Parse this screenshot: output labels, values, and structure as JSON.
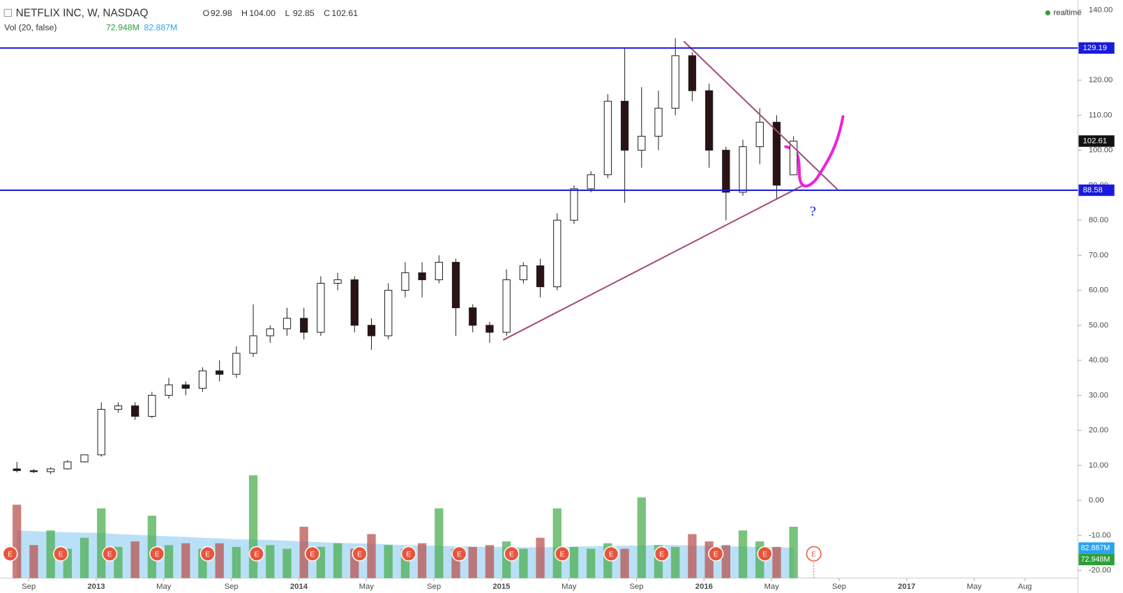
{
  "header": {
    "title": "NETFLIX INC, W, NASDAQ",
    "ohlc": [
      {
        "key": "O",
        "value": "92.98"
      },
      {
        "key": "H",
        "value": "104.00"
      },
      {
        "key": "L",
        "value": "92.85"
      },
      {
        "key": "C",
        "value": "102.61"
      }
    ],
    "indicator": "Vol (20, false)",
    "vol_value": "72.948M",
    "vol_ma_value": "82.887M",
    "status": "realtime"
  },
  "chart_data": {
    "type": "candlestick",
    "xlim": [
      6.3,
      70.1
    ],
    "ylim": [
      -22.2,
      142.9
    ],
    "vol_lim": [
      0,
      1575
    ],
    "xticks": [
      {
        "value": 8,
        "label": "Sep"
      },
      {
        "value": 12,
        "label": "2013"
      },
      {
        "value": 16,
        "label": "May"
      },
      {
        "value": 20,
        "label": "Sep"
      },
      {
        "value": 24,
        "label": "2014"
      },
      {
        "value": 28,
        "label": "May"
      },
      {
        "value": 32,
        "label": "Sep"
      },
      {
        "value": 36,
        "label": "2015"
      },
      {
        "value": 40,
        "label": "May"
      },
      {
        "value": 44,
        "label": "Sep"
      },
      {
        "value": 48,
        "label": "2016"
      },
      {
        "value": 52,
        "label": "May"
      },
      {
        "value": 56,
        "label": "Sep"
      },
      {
        "value": 60,
        "label": "2017"
      },
      {
        "value": 64,
        "label": "May"
      },
      {
        "value": 67,
        "label": "Aug"
      }
    ],
    "yticks": [
      {
        "value": 140,
        "label": "140.00"
      },
      {
        "value": 130,
        "label": "130.00"
      },
      {
        "value": 120,
        "label": "120.00"
      },
      {
        "value": 110,
        "label": "110.00"
      },
      {
        "value": 100,
        "label": "100.00"
      },
      {
        "value": 90,
        "label": "90.00"
      },
      {
        "value": 80,
        "label": "80.00"
      },
      {
        "value": 70,
        "label": "70.00"
      },
      {
        "value": 60,
        "label": "60.00"
      },
      {
        "value": 50,
        "label": "50.00"
      },
      {
        "value": 40,
        "label": "40.00"
      },
      {
        "value": 30,
        "label": "30.00"
      },
      {
        "value": 20,
        "label": "20.00"
      },
      {
        "value": 10,
        "label": "10.00"
      },
      {
        "value": 0,
        "label": "0.00"
      },
      {
        "value": -10,
        "label": "-10.00"
      },
      {
        "value": -20,
        "label": "-20.00"
      }
    ],
    "x": [
      7.3,
      8.3,
      9.3,
      10.3,
      11.3,
      12.3,
      13.3,
      14.3,
      15.3,
      16.3,
      17.3,
      18.3,
      19.3,
      20.3,
      21.3,
      22.3,
      23.3,
      24.3,
      25.3,
      26.3,
      27.3,
      28.3,
      29.3,
      30.3,
      31.3,
      32.3,
      33.3,
      34.3,
      35.3,
      36.3,
      37.3,
      38.3,
      39.3,
      40.3,
      41.3,
      42.3,
      43.3,
      44.3,
      45.3,
      46.3,
      47.3,
      48.3,
      49.3,
      50.3,
      51.3,
      52.3,
      53.3
    ],
    "open": [
      9,
      8.5,
      8.2,
      9,
      11,
      13,
      26,
      27,
      24,
      30,
      33,
      32,
      37,
      36,
      42,
      47,
      49,
      52,
      48,
      62,
      63,
      50,
      47,
      60,
      65,
      63,
      68,
      55,
      50,
      48,
      63,
      67,
      61,
      80,
      89,
      93,
      114,
      100,
      104,
      112,
      127,
      117,
      100,
      88,
      101,
      108,
      92.98
    ],
    "high": [
      11,
      9,
      9.5,
      11.5,
      13,
      28,
      28,
      28,
      31,
      35,
      34,
      38,
      40,
      44,
      56,
      50,
      55,
      55,
      64,
      65,
      64,
      52,
      62,
      68,
      68,
      70,
      69,
      56,
      51,
      66,
      68,
      69,
      82,
      90,
      94,
      116,
      129,
      118,
      117,
      132,
      128,
      119,
      101,
      103,
      112,
      110,
      104
    ],
    "low": [
      8,
      7.8,
      7.5,
      8.8,
      10.8,
      12.5,
      25,
      23,
      23.5,
      29,
      30,
      31,
      34,
      35,
      41,
      45,
      47,
      46,
      47,
      60,
      48,
      43,
      46,
      58,
      58,
      62,
      47,
      48,
      45,
      47,
      62,
      58,
      60,
      79,
      88,
      92,
      85,
      95,
      100,
      110,
      114,
      95,
      80,
      87,
      96,
      86,
      92.85
    ],
    "close": [
      8.5,
      8.2,
      9,
      11,
      13,
      26,
      27,
      24,
      30,
      33,
      32,
      37,
      36,
      42,
      47,
      49,
      52,
      48,
      62,
      63,
      50,
      47,
      60,
      65,
      63,
      68,
      55,
      50,
      48,
      63,
      67,
      61,
      80,
      89,
      93,
      114,
      100,
      104,
      112,
      127,
      117,
      100,
      88,
      101,
      108,
      90,
      102.61
    ],
    "volume": [
      200,
      90,
      130,
      80,
      110,
      190,
      85,
      100,
      170,
      90,
      95,
      80,
      95,
      85,
      280,
      90,
      80,
      140,
      85,
      95,
      80,
      120,
      90,
      80,
      95,
      190,
      80,
      85,
      90,
      100,
      80,
      110,
      190,
      85,
      80,
      95,
      80,
      220,
      90,
      85,
      120,
      100,
      90,
      130,
      100,
      85,
      140
    ],
    "volume_ma": [
      130,
      128,
      126,
      125,
      124,
      123,
      120,
      118,
      116,
      114,
      112,
      110,
      108,
      106,
      105,
      104,
      102,
      100,
      98,
      96,
      95,
      94,
      92,
      90,
      89,
      88,
      87,
      86,
      85,
      85,
      84,
      84,
      85,
      86,
      87,
      88,
      88,
      89,
      90,
      90,
      89,
      88,
      87,
      86,
      85,
      84,
      83
    ],
    "hlines": [
      {
        "value": 129.19,
        "label": "129.19"
      },
      {
        "value": 88.58,
        "label": "88.58"
      }
    ],
    "last_price": {
      "value": 102.61,
      "label": "102.61"
    },
    "trendlines": [
      {
        "x": [
          36.1,
          53.8
        ],
        "y": [
          45.8,
          89.8
        ]
      },
      {
        "x": [
          46.8,
          55.9
        ],
        "y": [
          131.1,
          88.8
        ]
      }
    ],
    "annotation": "?",
    "earnings": {
      "label": "E",
      "x": [
        6.9,
        9.9,
        12.8,
        15.6,
        18.6,
        21.5,
        24.8,
        27.6,
        30.5,
        33.5,
        36.6,
        39.6,
        42.5,
        45.5,
        48.7,
        51.6,
        54.5
      ]
    }
  }
}
